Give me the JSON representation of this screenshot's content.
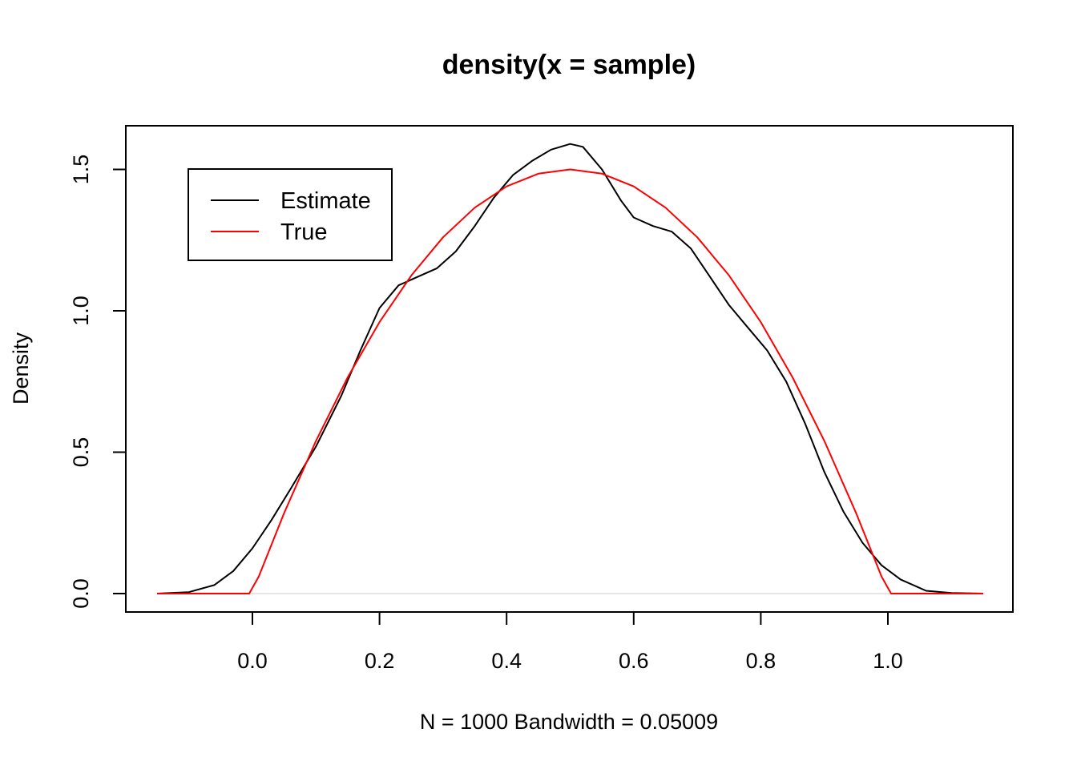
{
  "chart_data": {
    "type": "line",
    "title": "density(x = sample)",
    "xlabel": "N = 1000   Bandwidth = 0.05009",
    "ylabel": "Density",
    "xlim": [
      -0.15,
      1.15
    ],
    "ylim": [
      0,
      1.6
    ],
    "x_ticks": [
      0.0,
      0.2,
      0.4,
      0.6,
      0.8,
      1.0
    ],
    "x_tick_labels": [
      "0.0",
      "0.2",
      "0.4",
      "0.6",
      "0.8",
      "1.0"
    ],
    "y_ticks": [
      0.0,
      0.5,
      1.0,
      1.5
    ],
    "y_tick_labels": [
      "0.0",
      "0.5",
      "1.0",
      "1.5"
    ],
    "legend_position": "top-left",
    "baseline": {
      "y": 0,
      "color": "#cccccc"
    },
    "series": [
      {
        "name": "Estimate",
        "color": "#000000",
        "x": [
          -0.15,
          -0.1,
          -0.06,
          -0.03,
          0.0,
          0.03,
          0.06,
          0.1,
          0.14,
          0.17,
          0.2,
          0.23,
          0.26,
          0.29,
          0.32,
          0.35,
          0.38,
          0.41,
          0.44,
          0.47,
          0.5,
          0.52,
          0.55,
          0.58,
          0.6,
          0.63,
          0.66,
          0.69,
          0.72,
          0.75,
          0.78,
          0.81,
          0.84,
          0.87,
          0.9,
          0.93,
          0.96,
          0.99,
          1.02,
          1.06,
          1.1,
          1.15
        ],
        "y": [
          0.0,
          0.005,
          0.03,
          0.08,
          0.16,
          0.26,
          0.37,
          0.52,
          0.7,
          0.86,
          1.01,
          1.09,
          1.12,
          1.15,
          1.21,
          1.3,
          1.4,
          1.48,
          1.53,
          1.57,
          1.59,
          1.58,
          1.5,
          1.39,
          1.33,
          1.3,
          1.28,
          1.22,
          1.12,
          1.02,
          0.94,
          0.86,
          0.75,
          0.6,
          0.43,
          0.29,
          0.18,
          0.1,
          0.05,
          0.01,
          0.002,
          0.0
        ]
      },
      {
        "name": "True",
        "color": "#ff0000",
        "x": [
          -0.15,
          -0.005,
          0.01,
          0.05,
          0.1,
          0.15,
          0.2,
          0.25,
          0.3,
          0.35,
          0.4,
          0.45,
          0.5,
          0.55,
          0.6,
          0.65,
          0.7,
          0.75,
          0.8,
          0.85,
          0.9,
          0.95,
          0.99,
          1.005,
          1.15
        ],
        "y": [
          0.0,
          0.0,
          0.06,
          0.285,
          0.54,
          0.765,
          0.96,
          1.125,
          1.26,
          1.365,
          1.44,
          1.485,
          1.5,
          1.485,
          1.44,
          1.365,
          1.26,
          1.125,
          0.96,
          0.765,
          0.54,
          0.285,
          0.06,
          0.0,
          0.0
        ]
      }
    ]
  }
}
